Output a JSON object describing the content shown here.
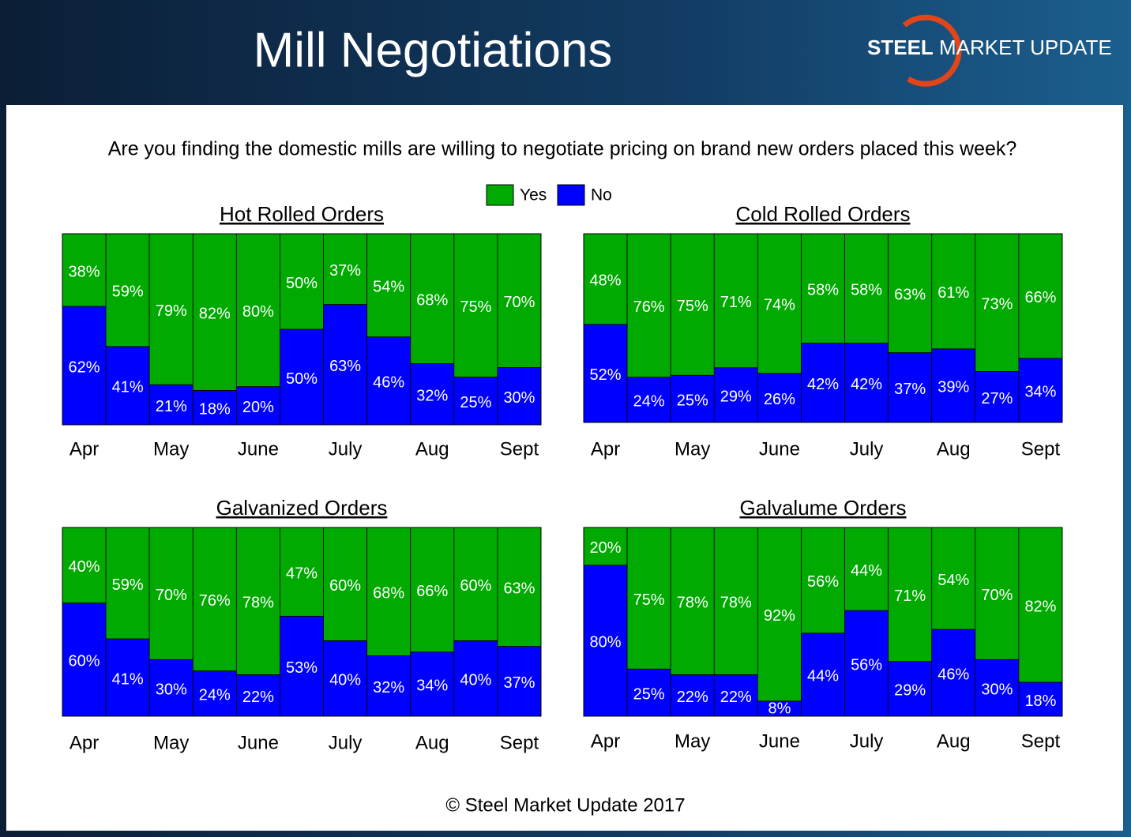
{
  "header": {
    "title": "Mill Negotiations",
    "logo": [
      "STEEL",
      "MARKET",
      "UPDATE"
    ]
  },
  "question": "Are you finding the domestic mills are willing to negotiate pricing on brand new orders placed this week?",
  "footer": "© Steel Market Update 2017",
  "chart_data": [
    {
      "type": "stacked_bar",
      "title": "Hot Rolled Orders",
      "categories": [
        "Apr",
        null,
        "May",
        null,
        "June",
        null,
        "July",
        null,
        "Aug",
        null,
        "Sept"
      ],
      "ylim": [
        0,
        100
      ],
      "series": [
        {
          "name": "Yes",
          "color": "#00aa00",
          "values": [
            38,
            59,
            79,
            82,
            80,
            50,
            37,
            54,
            68,
            75,
            70
          ],
          "value_labels": [
            "38%",
            "59%",
            "79%",
            "82%",
            "80%",
            "50%",
            "37%",
            "54%",
            "68%",
            "75%",
            "70%"
          ]
        },
        {
          "name": "No",
          "color": "#0000ff",
          "values": [
            62,
            41,
            21,
            18,
            20,
            50,
            63,
            46,
            32,
            25,
            30
          ],
          "value_labels": [
            "62%",
            "41%",
            "21%",
            "18%",
            "20%",
            "50%",
            "63%",
            "46%",
            "32%",
            "25%",
            "30%"
          ]
        }
      ]
    },
    {
      "type": "stacked_bar",
      "title": "Cold Rolled Orders",
      "categories": [
        "Apr",
        null,
        "May",
        null,
        "June",
        null,
        "July",
        null,
        "Aug",
        null,
        "Sept"
      ],
      "ylim": [
        0,
        100
      ],
      "series": [
        {
          "name": "Yes",
          "color": "#00aa00",
          "values": [
            48,
            76,
            75,
            71,
            74,
            58,
            58,
            63,
            61,
            73,
            66
          ],
          "value_labels": [
            "48%",
            "76%",
            "75%",
            "71%",
            "74%",
            "58%",
            "58%",
            "63%",
            "61%",
            "73%",
            "66%"
          ]
        },
        {
          "name": "No",
          "color": "#0000ff",
          "values": [
            52,
            24,
            25,
            29,
            26,
            42,
            42,
            37,
            39,
            27,
            34
          ],
          "value_labels": [
            "52%",
            "24%",
            "25%",
            "29%",
            "26%",
            "42%",
            "42%",
            "37%",
            "39%",
            "27%",
            "34%"
          ]
        }
      ]
    },
    {
      "type": "stacked_bar",
      "title": "Galvanized Orders",
      "categories": [
        "Apr",
        null,
        "May",
        null,
        "June",
        null,
        "July",
        null,
        "Aug",
        null,
        "Sept"
      ],
      "ylim": [
        0,
        100
      ],
      "series": [
        {
          "name": "Yes",
          "color": "#00aa00",
          "values": [
            40,
            59,
            70,
            76,
            78,
            47,
            60,
            68,
            66,
            60,
            63
          ],
          "value_labels": [
            "40%",
            "59%",
            "70%",
            "76%",
            "78%",
            "47%",
            "60%",
            "68%",
            "66%",
            "60%",
            "63%"
          ]
        },
        {
          "name": "No",
          "color": "#0000ff",
          "values": [
            60,
            41,
            30,
            24,
            22,
            53,
            40,
            32,
            34,
            40,
            37
          ],
          "value_labels": [
            "60%",
            "41%",
            "30%",
            "24%",
            "22%",
            "53%",
            "40%",
            "32%",
            "34%",
            "40%",
            "37%"
          ]
        }
      ]
    },
    {
      "type": "stacked_bar",
      "title": "Galvalume Orders",
      "categories": [
        "Apr",
        null,
        "May",
        null,
        "June",
        null,
        "July",
        null,
        "Aug",
        null,
        "Sept"
      ],
      "ylim": [
        0,
        100
      ],
      "series": [
        {
          "name": "Yes",
          "color": "#00aa00",
          "values": [
            20,
            75,
            78,
            78,
            92,
            56,
            44,
            71,
            54,
            70,
            82
          ],
          "value_labels": [
            "20%",
            "75%",
            "78%",
            "78%",
            "92%",
            "56%",
            "44%",
            "71%",
            "54%",
            "70%",
            "82%"
          ]
        },
        {
          "name": "No",
          "color": "#0000ff",
          "values": [
            80,
            25,
            22,
            22,
            8,
            44,
            56,
            29,
            46,
            30,
            18
          ],
          "value_labels": [
            "80%",
            "25%",
            "22%",
            "22%",
            "8%",
            "44%",
            "56%",
            "29%",
            "46%",
            "30%",
            "18%"
          ]
        }
      ]
    }
  ]
}
